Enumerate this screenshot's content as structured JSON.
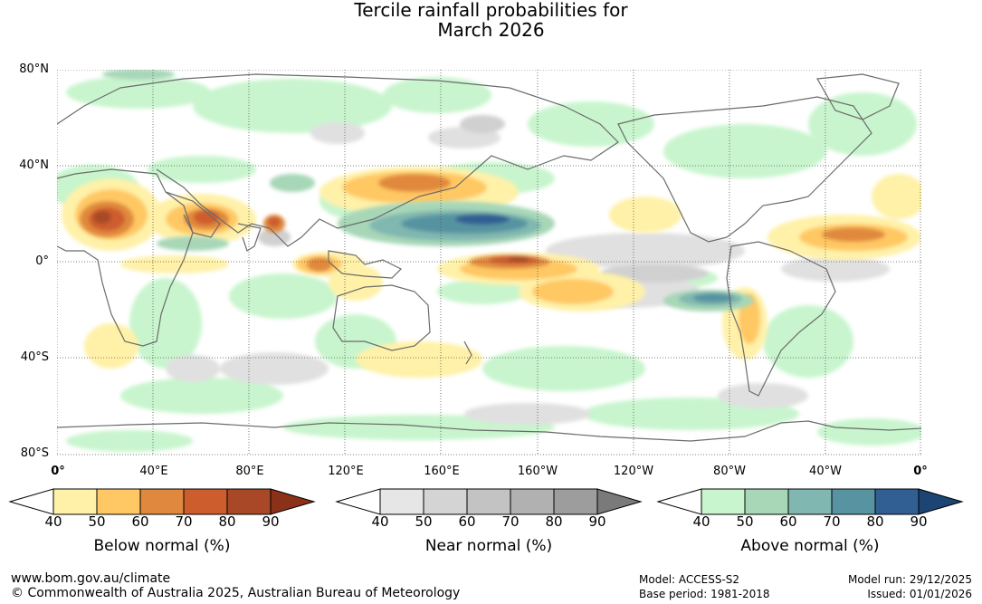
{
  "title": {
    "line1": "Tercile rainfall probabilities for",
    "line2": "March 2026"
  },
  "map": {
    "lat_labels": [
      "80°N",
      "40°N",
      "0°",
      "40°S",
      "80°S"
    ],
    "lon_labels": [
      "0°",
      "40°E",
      "80°E",
      "120°E",
      "160°E",
      "160°W",
      "120°W",
      "80°W",
      "40°W",
      "0°"
    ],
    "colors": {
      "ocean_bg": "#ffffff",
      "coast": "#6b6b6b",
      "grid": "#555555"
    }
  },
  "colorbars": [
    {
      "name": "below",
      "title": "Below normal (%)",
      "ticks": [
        "40",
        "50",
        "60",
        "70",
        "80",
        "90"
      ],
      "colors": [
        "#ffffff",
        "#fff1a8",
        "#ffc864",
        "#e0893e",
        "#cd5d2d",
        "#a84826",
        "#8b3019"
      ]
    },
    {
      "name": "near",
      "title": "Near normal (%)",
      "ticks": [
        "40",
        "50",
        "60",
        "70",
        "80",
        "90"
      ],
      "colors": [
        "#ffffff",
        "#e6e6e6",
        "#d4d4d4",
        "#c3c3c3",
        "#b1b1b1",
        "#9d9d9d",
        "#7a7a7a"
      ]
    },
    {
      "name": "above",
      "title": "Above normal (%)",
      "ticks": [
        "40",
        "50",
        "60",
        "70",
        "80",
        "90"
      ],
      "colors": [
        "#ffffff",
        "#c8f5cd",
        "#a7d7b7",
        "#80b7b0",
        "#5793a0",
        "#325f93",
        "#1d4574"
      ]
    }
  ],
  "footer": {
    "site": "www.bom.gov.au/climate",
    "copyright": "© Commonwealth of Australia 2025, Australian Bureau of Meteorology",
    "model": "Model: ACCESS-S2",
    "base_period": "Base period: 1981-2018",
    "model_run": "Model run: 29/12/2025",
    "issued": "Issued: 01/01/2026"
  }
}
